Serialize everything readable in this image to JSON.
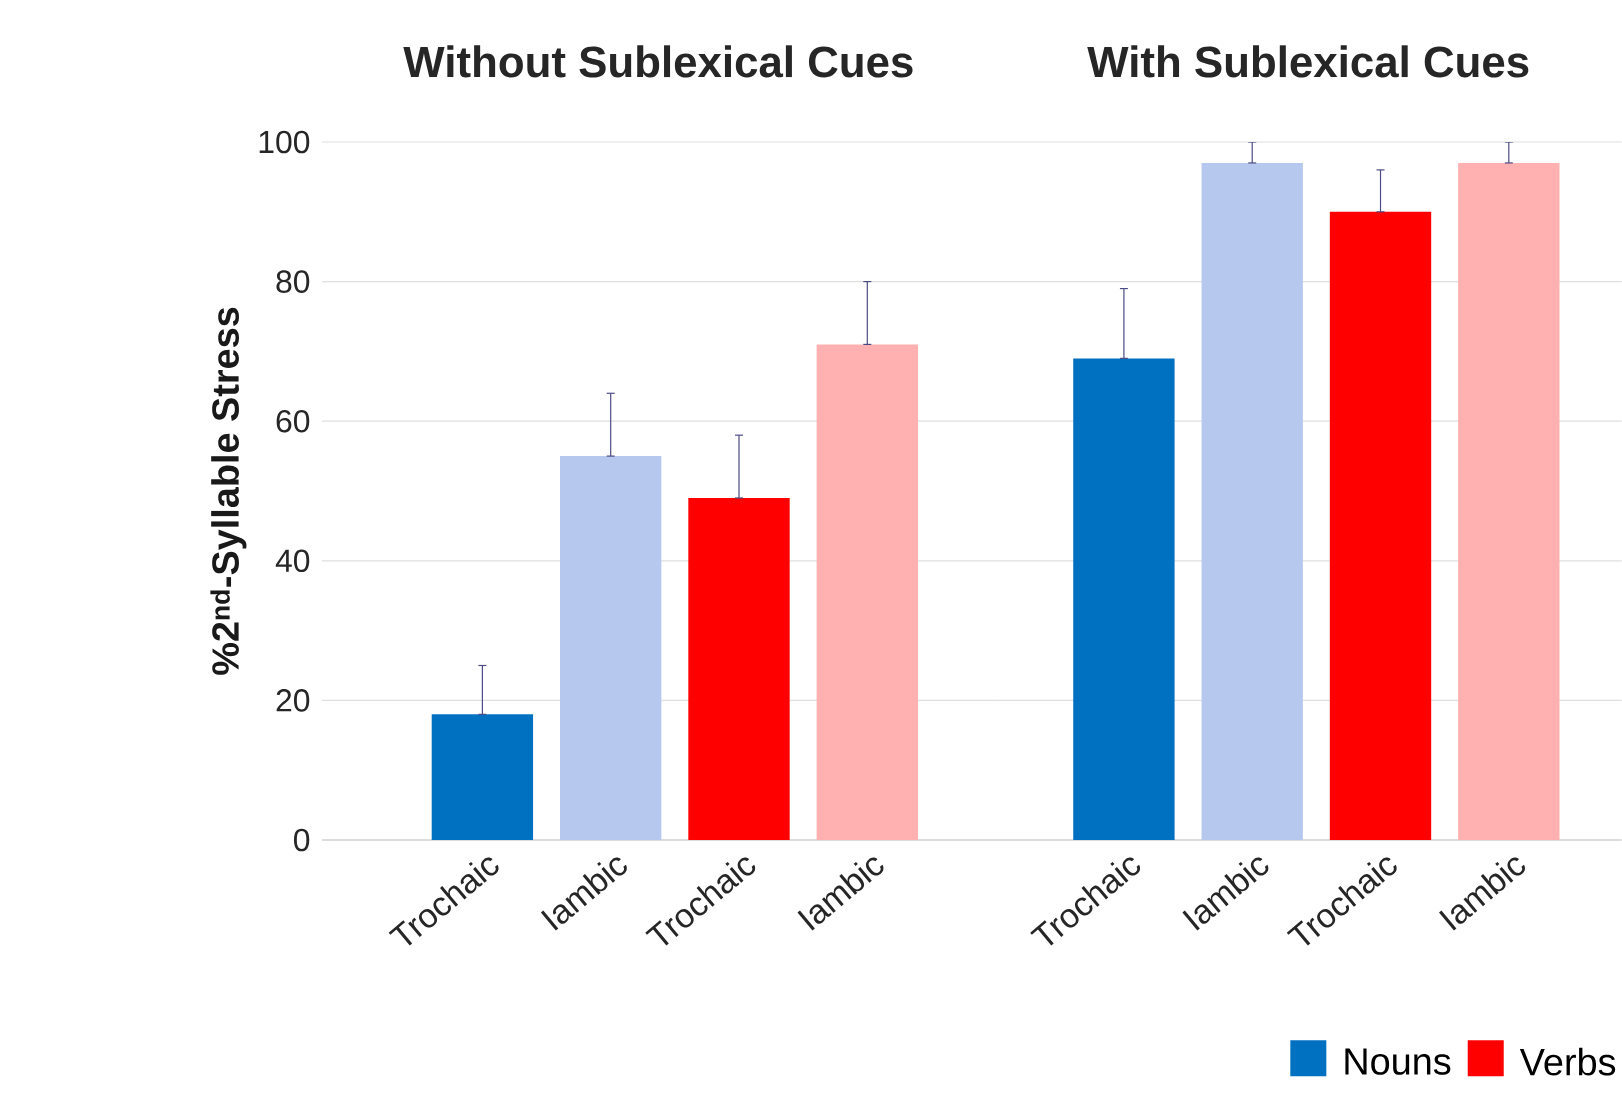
{
  "chart_data": [
    {
      "type": "bar",
      "title": "Without Sublexical Cues",
      "ylabel": "%2$^{nd}$-Syllable Stress",
      "categories": [
        "Trochaic",
        "Iambic",
        "Trochaic",
        "Iambic"
      ],
      "ylim": [
        0,
        100
      ],
      "yticks": [
        0,
        20,
        40,
        60,
        80,
        100
      ],
      "grid": "y",
      "series": [
        {
          "colors": [
            "#0070c0",
            "#b7c8ee",
            null,
            null
          ],
          "values": [
            18,
            55,
            null,
            null
          ],
          "errors": [
            [
              18,
              25
            ],
            [
              55,
              64
            ],
            null,
            null
          ]
        },
        {
          "colors": [
            null,
            null,
            "#ff0000",
            "#ffb0b0"
          ],
          "values": [
            null,
            null,
            49,
            71
          ],
          "errors": [
            null,
            null,
            [
              49,
              58
            ],
            [
              71,
              80
            ]
          ]
        }
      ]
    },
    {
      "type": "bar",
      "title": "With Sublexical Cues",
      "categories": [
        "Trochaic",
        "Iambic",
        "Trochaic",
        "Iambic"
      ],
      "ylim": [
        0,
        100
      ],
      "yticks": [
        0,
        20,
        40,
        60,
        80,
        100
      ],
      "grid": "y",
      "tick_labels": "x",
      "legend": "bottom right",
      "series": [
        {
          "name": "Nouns",
          "color": "#0070c0",
          "colors": [
            "#0070c0",
            "#b7c8ee",
            null,
            null
          ],
          "values": [
            69,
            97,
            null,
            null
          ],
          "errors": [
            [
              69,
              79
            ],
            [
              97,
              100
            ],
            null,
            null
          ]
        },
        {
          "name": "Verbs",
          "color": "#ff0000",
          "colors": [
            null,
            null,
            "#ff0000",
            "#ffb0b0"
          ],
          "values": [
            null,
            null,
            90,
            97
          ],
          "errors": [
            null,
            null,
            [
              90,
              96
            ],
            [
              97,
              100
            ]
          ]
        }
      ]
    }
  ]
}
